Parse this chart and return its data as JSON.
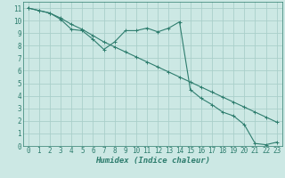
{
  "xlabel": "Humidex (Indice chaleur)",
  "background_color": "#cce8e4",
  "line_color": "#2e7d6e",
  "grid_color": "#aacfca",
  "xlim": [
    -0.5,
    23.5
  ],
  "ylim": [
    0,
    11.5
  ],
  "xticks": [
    0,
    1,
    2,
    3,
    4,
    5,
    6,
    7,
    8,
    9,
    10,
    11,
    12,
    13,
    14,
    15,
    16,
    17,
    18,
    19,
    20,
    21,
    22,
    23
  ],
  "yticks": [
    0,
    1,
    2,
    3,
    4,
    5,
    6,
    7,
    8,
    9,
    10,
    11
  ],
  "line1_x": [
    0,
    1,
    2,
    3,
    4,
    5,
    6,
    7,
    8,
    9,
    10,
    11,
    12,
    13,
    14,
    15,
    16,
    17,
    18,
    19,
    20,
    21,
    22,
    23
  ],
  "line1_y": [
    11,
    10.8,
    10.6,
    10.2,
    9.7,
    9.3,
    8.8,
    8.3,
    7.9,
    7.5,
    7.1,
    6.7,
    6.3,
    5.9,
    5.5,
    5.1,
    4.7,
    4.3,
    3.9,
    3.5,
    3.1,
    2.7,
    2.3,
    1.9
  ],
  "line2_x": [
    0,
    1,
    2,
    3,
    4,
    5,
    6,
    7,
    8,
    9,
    10,
    11,
    12,
    13,
    14,
    15,
    16,
    17,
    18,
    19,
    20,
    21,
    22,
    23
  ],
  "line2_y": [
    11,
    10.8,
    10.6,
    10.1,
    9.3,
    9.2,
    8.5,
    7.7,
    8.3,
    9.2,
    9.2,
    9.4,
    9.1,
    9.4,
    9.9,
    4.5,
    3.8,
    3.3,
    2.7,
    2.4,
    1.7,
    0.2,
    0.1,
    0.3
  ],
  "tick_fontsize": 5.5,
  "xlabel_fontsize": 6.5
}
